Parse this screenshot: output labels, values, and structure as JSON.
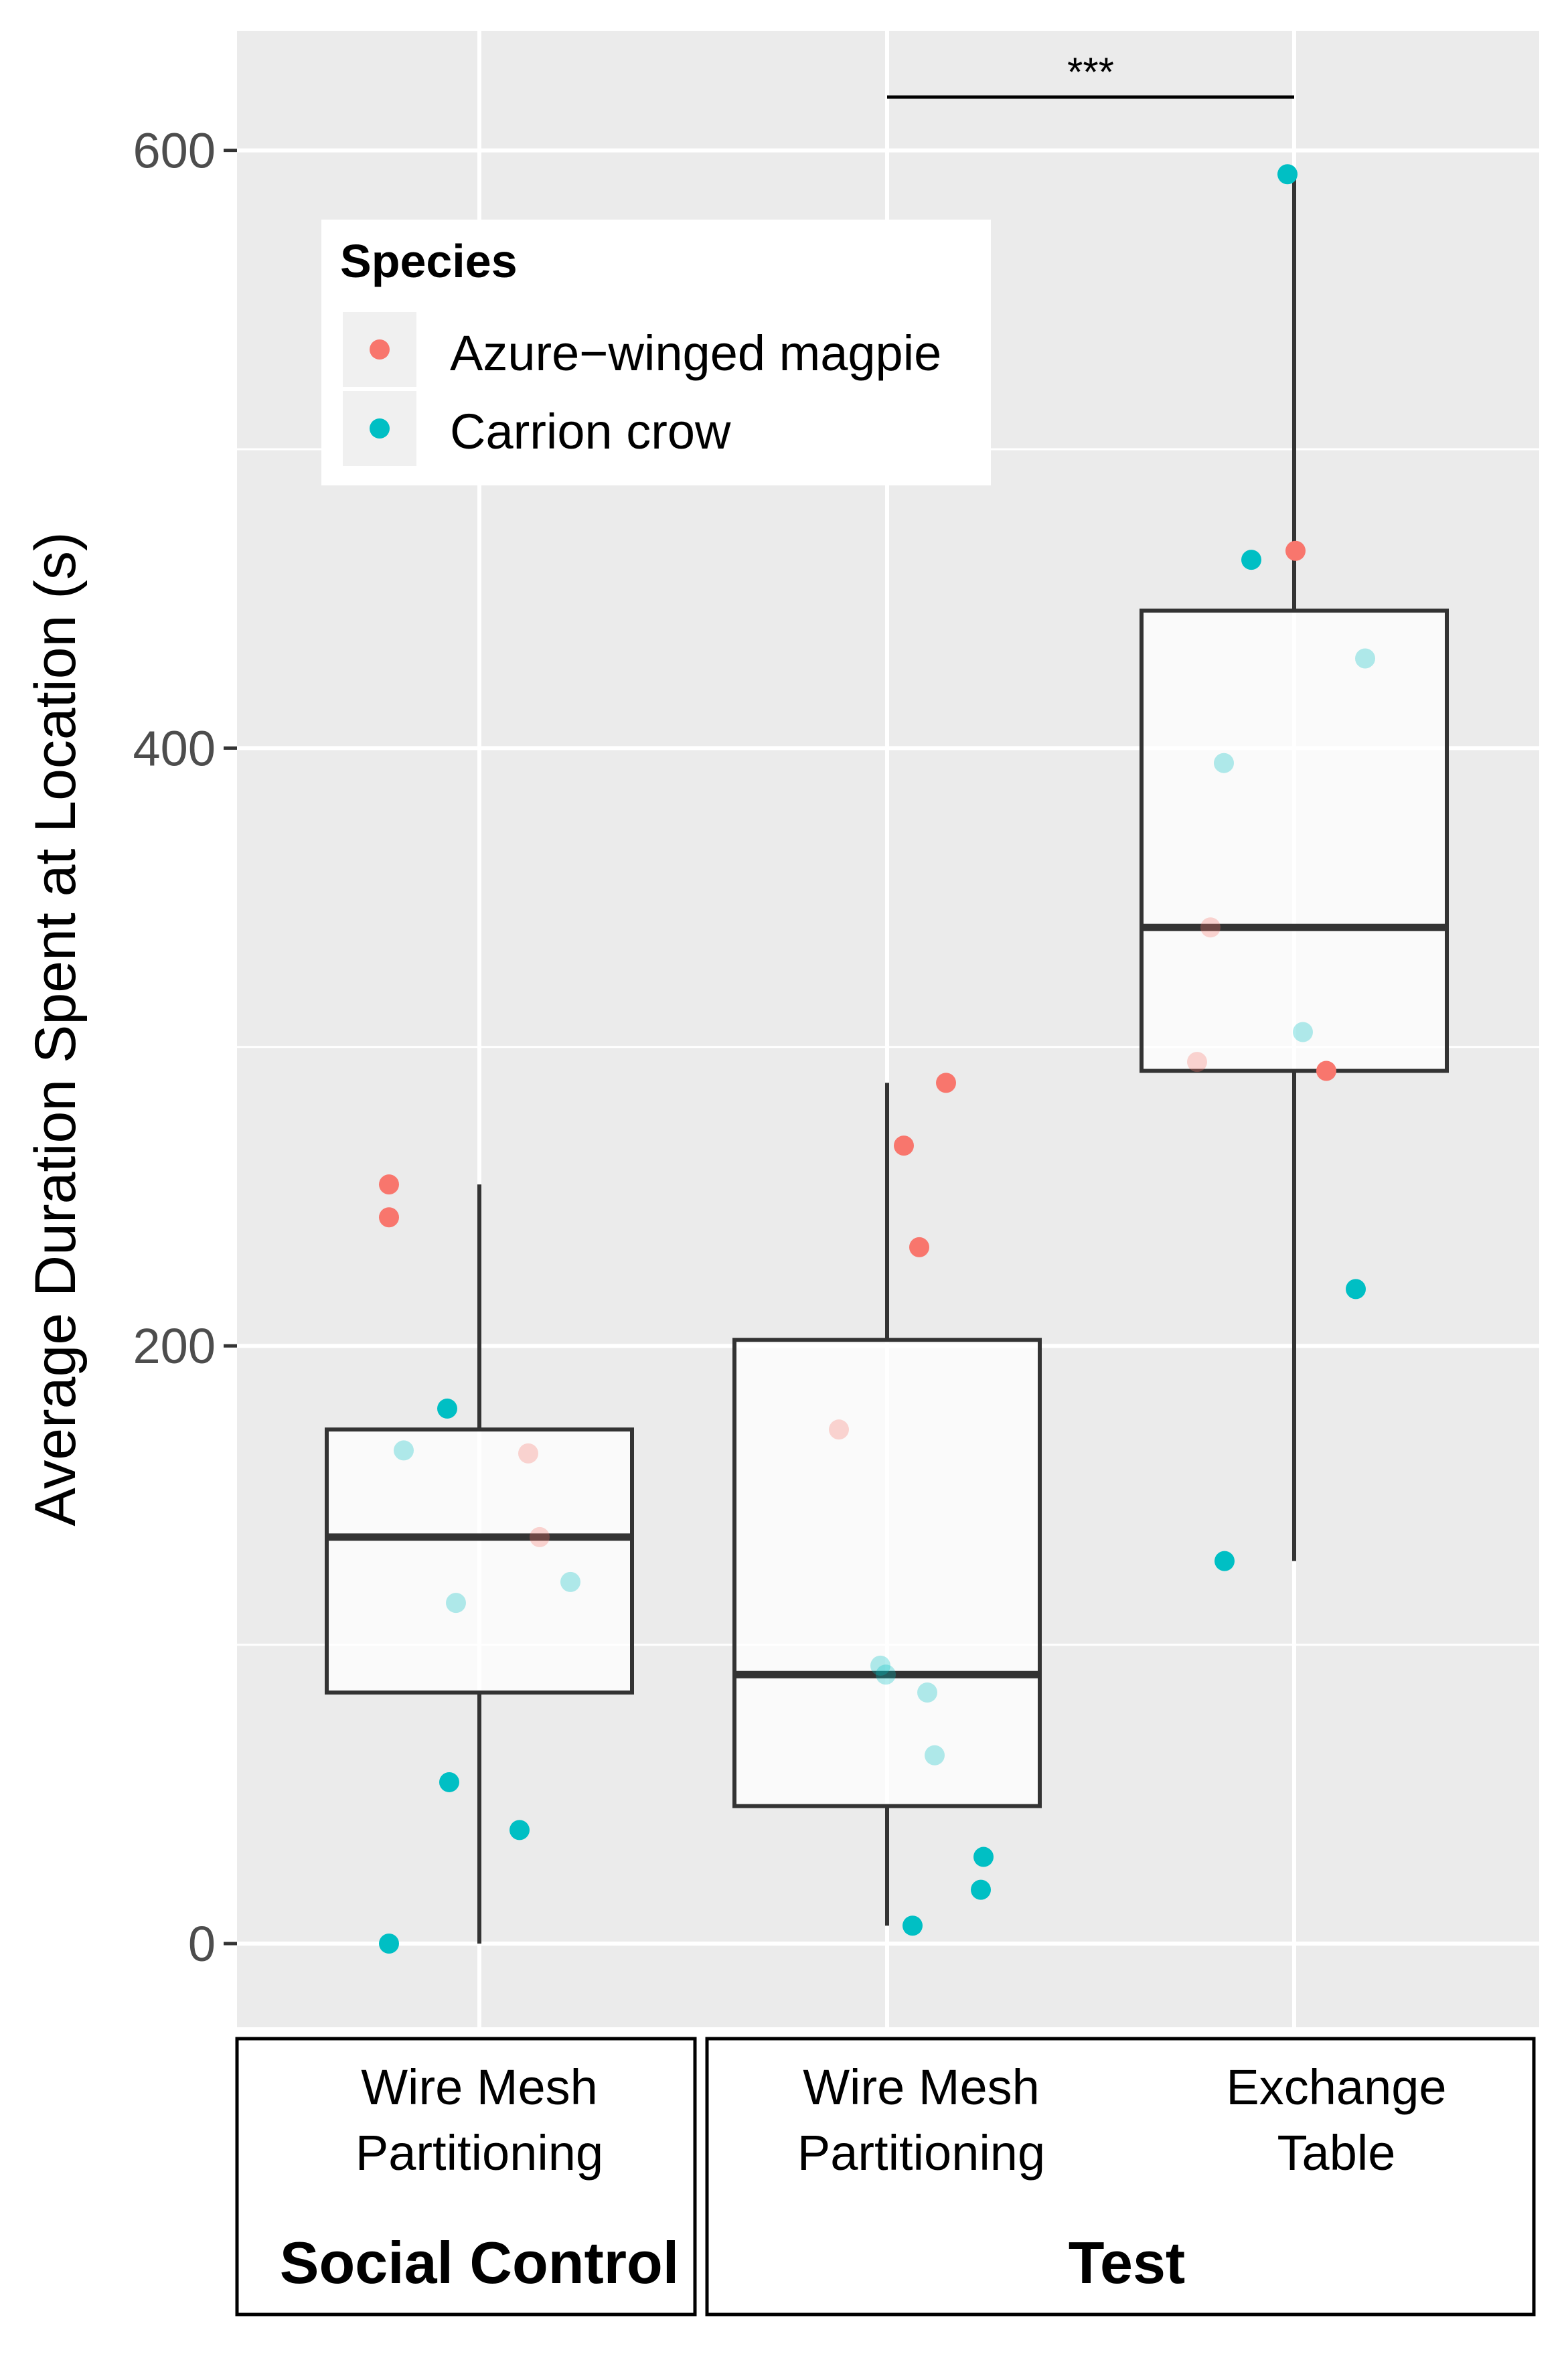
{
  "chart_data": {
    "type": "boxplot-with-jitter",
    "title": "",
    "ylabel": "Average Duration Spent at Location (s)",
    "xlabel": "",
    "ylim": [
      -28,
      640
    ],
    "yticks": [
      0,
      200,
      400,
      600
    ],
    "grid": true,
    "legend": {
      "title": "Species",
      "position": "top-left",
      "entries": [
        {
          "label": "Azure−winged magpie",
          "color": "#F8766D"
        },
        {
          "label": "Carrion crow",
          "color": "#00BFC4"
        }
      ]
    },
    "facets": [
      {
        "label": "Social Control",
        "categories": [
          "Wire Mesh Partitioning"
        ]
      },
      {
        "label": "Test",
        "categories": [
          "Wire Mesh Partitioning",
          "Exchange Table"
        ]
      }
    ],
    "category_labels": [
      [
        "Wire Mesh",
        "Partitioning"
      ],
      [
        "Wire Mesh",
        "Partitioning"
      ],
      [
        "Exchange",
        "Table"
      ]
    ],
    "boxes": [
      {
        "group": "Social Control / Wire Mesh Partitioning",
        "whisker_low": 0,
        "q1": 84,
        "median": 136,
        "q3": 172,
        "whisker_high": 254
      },
      {
        "group": "Test / Wire Mesh Partitioning",
        "whisker_low": 6,
        "q1": 46,
        "median": 90,
        "q3": 202,
        "whisker_high": 288
      },
      {
        "group": "Test / Exchange Table",
        "whisker_low": 128,
        "q1": 292,
        "median": 340,
        "q3": 446,
        "whisker_high": 592
      }
    ],
    "points": [
      {
        "group": 0,
        "species": "Azure−winged magpie",
        "value": 254
      },
      {
        "group": 0,
        "species": "Azure−winged magpie",
        "value": 243
      },
      {
        "group": 0,
        "species": "Azure−winged magpie",
        "value": 164
      },
      {
        "group": 0,
        "species": "Azure−winged magpie",
        "value": 136
      },
      {
        "group": 0,
        "species": "Carrion crow",
        "value": 179
      },
      {
        "group": 0,
        "species": "Carrion crow",
        "value": 165
      },
      {
        "group": 0,
        "species": "Carrion crow",
        "value": 121
      },
      {
        "group": 0,
        "species": "Carrion crow",
        "value": 114
      },
      {
        "group": 0,
        "species": "Carrion crow",
        "value": 54
      },
      {
        "group": 0,
        "species": "Carrion crow",
        "value": 38
      },
      {
        "group": 0,
        "species": "Carrion crow",
        "value": 0
      },
      {
        "group": 1,
        "species": "Azure−winged magpie",
        "value": 288
      },
      {
        "group": 1,
        "species": "Azure−winged magpie",
        "value": 267
      },
      {
        "group": 1,
        "species": "Azure−winged magpie",
        "value": 233
      },
      {
        "group": 1,
        "species": "Azure−winged magpie",
        "value": 172
      },
      {
        "group": 1,
        "species": "Carrion crow",
        "value": 93
      },
      {
        "group": 1,
        "species": "Carrion crow",
        "value": 90
      },
      {
        "group": 1,
        "species": "Carrion crow",
        "value": 84
      },
      {
        "group": 1,
        "species": "Carrion crow",
        "value": 63
      },
      {
        "group": 1,
        "species": "Carrion crow",
        "value": 29
      },
      {
        "group": 1,
        "species": "Carrion crow",
        "value": 18
      },
      {
        "group": 1,
        "species": "Carrion crow",
        "value": 6
      },
      {
        "group": 2,
        "species": "Azure−winged magpie",
        "value": 466
      },
      {
        "group": 2,
        "species": "Azure−winged magpie",
        "value": 340
      },
      {
        "group": 2,
        "species": "Azure−winged magpie",
        "value": 295
      },
      {
        "group": 2,
        "species": "Azure−winged magpie",
        "value": 292
      },
      {
        "group": 2,
        "species": "Carrion crow",
        "value": 592
      },
      {
        "group": 2,
        "species": "Carrion crow",
        "value": 463
      },
      {
        "group": 2,
        "species": "Carrion crow",
        "value": 430
      },
      {
        "group": 2,
        "species": "Carrion crow",
        "value": 395
      },
      {
        "group": 2,
        "species": "Carrion crow",
        "value": 305
      },
      {
        "group": 2,
        "species": "Carrion crow",
        "value": 219
      },
      {
        "group": 2,
        "species": "Carrion crow",
        "value": 128
      }
    ],
    "annotations": [
      {
        "text": "***",
        "between": [
          "Test / Wire Mesh Partitioning",
          "Test / Exchange Table"
        ]
      }
    ]
  }
}
